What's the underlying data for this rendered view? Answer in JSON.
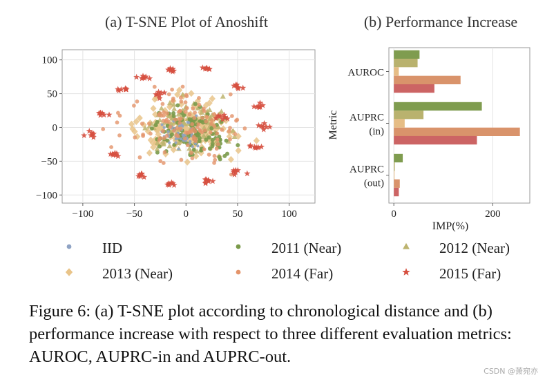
{
  "charts": [
    {
      "type": "scatter",
      "title": "(a) T-SNE Plot of Anoshift",
      "xlim": [
        -120,
        125
      ],
      "ylim": [
        -112,
        115
      ],
      "xticks": [
        -100,
        -50,
        0,
        50,
        100
      ],
      "yticks": [
        100,
        50,
        0,
        -50,
        -100
      ],
      "grid": true
    },
    {
      "type": "bar",
      "orientation": "horizontal",
      "title": "(b) Performance Increase",
      "xlabel": "IMP(%)",
      "ylabel": "Metric",
      "xlim": [
        -10,
        275
      ],
      "xticks": [
        0,
        200
      ],
      "categories": [
        {
          "lines": [
            "AUROC"
          ]
        },
        {
          "lines": [
            "AUPRC",
            "(in)"
          ]
        },
        {
          "lines": [
            "AUPRC",
            "(out)"
          ]
        }
      ],
      "series": [
        {
          "color": "#7f9c4f",
          "values": [
            52,
            178,
            18
          ]
        },
        {
          "color": "#b9b26e",
          "values": [
            48,
            60,
            2
          ]
        },
        {
          "color": "#e6bd85",
          "values": [
            10,
            22,
            1
          ]
        },
        {
          "color": "#d9936b",
          "values": [
            135,
            255,
            12
          ]
        },
        {
          "color": "#cc6464",
          "values": [
            82,
            168,
            10
          ]
        }
      ],
      "grid": true
    }
  ],
  "legend": [
    {
      "label": "IID",
      "marker": "circle",
      "color": "#8fa3c4"
    },
    {
      "label": "2011 (Near)",
      "marker": "circle",
      "color": "#7a9a4a"
    },
    {
      "label": "2012 (Near)",
      "marker": "triangle",
      "color": "#bdb46f"
    },
    {
      "label": "2013 (Near)",
      "marker": "diamond",
      "color": "#e9c489"
    },
    {
      "label": "2014 (Far)",
      "marker": "circle",
      "color": "#e4946a"
    },
    {
      "label": "2015 (Far)",
      "marker": "star",
      "color": "#d64f3f"
    }
  ],
  "caption": "Figure 6: (a) T-SNE plot according to chronological distance and (b) performance increase with respect to three different evaluation metrics: AUROC, AUPRC-in and AUPRC-out.",
  "watermark": "CSDN @萧宛亦"
}
